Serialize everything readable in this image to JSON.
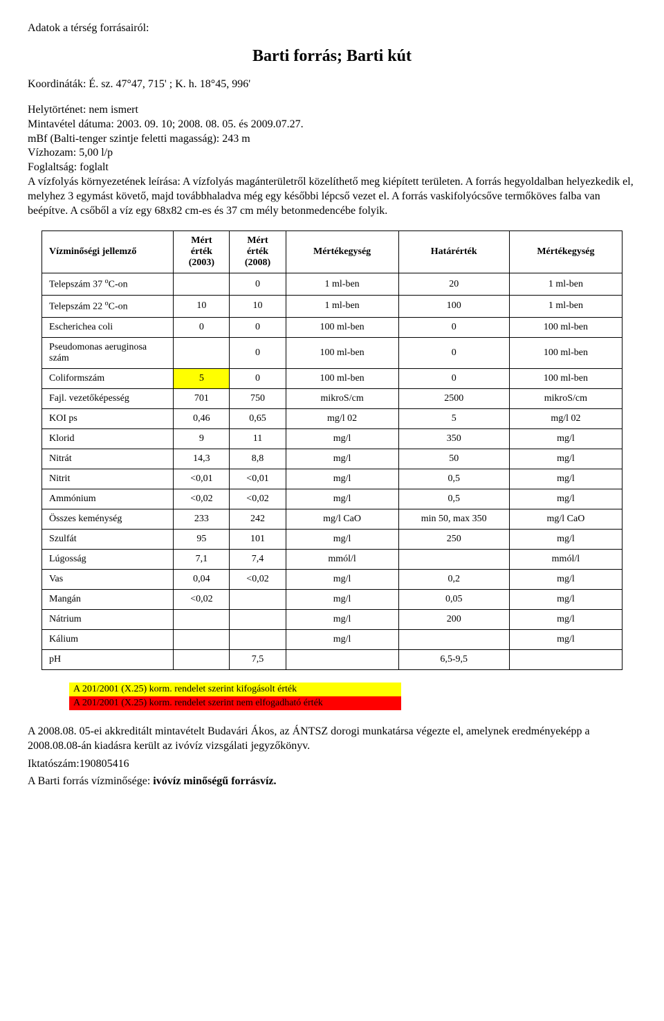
{
  "intro": "Adatok a térség forrásairól:",
  "title": "Barti forrás; Barti kút",
  "coords": "Koordináták: É. sz. 47°47, 715' ; K. h. 18°45, 996'",
  "desc": {
    "l1": "Helytörténet: nem ismert",
    "l2": "Mintavétel dátuma: 2003. 09. 10; 2008. 08. 05. és 2009.07.27.",
    "l3": "mBf (Balti-tenger szintje feletti magasság): 243 m",
    "l4": "Vízhozam: 5,00  l/p",
    "l5": "Foglaltság: foglalt",
    "l6": "A vízfolyás környezetének leírása: A vízfolyás magánterületről közelíthető meg kiépített területen. A forrás hegyoldalban helyezkedik el, melyhez 3 egymást követő, majd továbbhaladva még egy későbbi lépcső vezet el. A forrás vaskifolyócsőve termőköves falba van beépítve. A csőből a víz egy 68x82 cm-es és 37 cm mély betonmedencébe folyik."
  },
  "table": {
    "columns": [
      "Vízminőségi jellemző",
      "Mért érték (2003)",
      "Mért érték (2008)",
      "Mértékegység",
      "Határérték",
      "Mértékegység"
    ],
    "col_align": [
      "left",
      "center",
      "center",
      "center",
      "center",
      "center"
    ],
    "col_widths": [
      "190px",
      "70px",
      "70px",
      "160px",
      "160px",
      "160px"
    ],
    "rows": [
      {
        "cells": [
          "Telepszám 37 °C-on",
          "",
          "0",
          "1 ml-ben",
          "20",
          "1 ml-ben"
        ],
        "sup": true
      },
      {
        "cells": [
          "Telepszám 22 °C-on",
          "10",
          "10",
          "1 ml-ben",
          "100",
          "1 ml-ben"
        ],
        "sup": true
      },
      {
        "cells": [
          "Escherichea coli",
          "0",
          "0",
          "100 ml-ben",
          "0",
          "100 ml-ben"
        ]
      },
      {
        "cells": [
          "Pseudomonas aeruginosa szám",
          "",
          "0",
          "100 ml-ben",
          "0",
          "100 ml-ben"
        ]
      },
      {
        "cells": [
          "Coliformszám",
          "5",
          "0",
          "100 ml-ben",
          "0",
          "100 ml-ben"
        ],
        "highlight_col": 1,
        "highlight": "yellow"
      },
      {
        "cells": [
          "Fajl. vezetőképesség",
          "701",
          "750",
          "mikroS/cm",
          "2500",
          "mikroS/cm"
        ]
      },
      {
        "cells": [
          "KOI ps",
          "0,46",
          "0,65",
          "mg/l 02",
          "5",
          "mg/l 02"
        ]
      },
      {
        "cells": [
          "Klorid",
          "9",
          "11",
          "mg/l",
          "350",
          "mg/l"
        ]
      },
      {
        "cells": [
          "Nitrát",
          "14,3",
          "8,8",
          "mg/l",
          "50",
          "mg/l"
        ]
      },
      {
        "cells": [
          "Nitrit",
          "<0,01",
          "<0,01",
          "mg/l",
          "0,5",
          "mg/l"
        ]
      },
      {
        "cells": [
          "Ammónium",
          "<0,02",
          "<0,02",
          "mg/l",
          "0,5",
          "mg/l"
        ]
      },
      {
        "cells": [
          "Összes keménység",
          "233",
          "242",
          "mg/l CaO",
          "min 50, max 350",
          "mg/l CaO"
        ]
      },
      {
        "cells": [
          "Szulfát",
          "95",
          "101",
          "mg/l",
          "250",
          "mg/l"
        ]
      },
      {
        "cells": [
          "Lúgosság",
          "7,1",
          "7,4",
          "mmól/l",
          "",
          "mmól/l"
        ]
      },
      {
        "cells": [
          "Vas",
          "0,04",
          "<0,02",
          "mg/l",
          "0,2",
          "mg/l"
        ]
      },
      {
        "cells": [
          "Mangán",
          "<0,02",
          "",
          "mg/l",
          "0,05",
          "mg/l"
        ]
      },
      {
        "cells": [
          "Nátrium",
          "",
          "",
          "mg/l",
          "200",
          "mg/l"
        ]
      },
      {
        "cells": [
          "Kálium",
          "",
          "",
          "mg/l",
          "",
          "mg/l"
        ]
      },
      {
        "cells": [
          "pH",
          "",
          "7,5",
          "",
          "6,5-9,5",
          ""
        ]
      }
    ]
  },
  "legend": {
    "yellow": "A 201/2001 (X.25) korm. rendelet szerint kifogásolt érték",
    "red": "A 201/2001 (X.25) korm. rendelet szerint nem elfogadható érték"
  },
  "closing": {
    "l1": "A 2008.08. 05-ei akkreditált mintavételt Budavári Ákos, az ÁNTSZ dorogi munkatársa végezte el, amelynek eredményeképp a 2008.08.08-án kiadásra került az ivóvíz vizsgálati jegyzőkönyv.",
    "l2": "Iktatószám:190805416",
    "l3a": "A Barti forrás vízminősége: ",
    "l3b": "ivóvíz minőségű forrásvíz."
  },
  "colors": {
    "yellow": "#ffff00",
    "red": "#ff0000",
    "text": "#000000",
    "bg": "#ffffff",
    "border": "#000000"
  }
}
